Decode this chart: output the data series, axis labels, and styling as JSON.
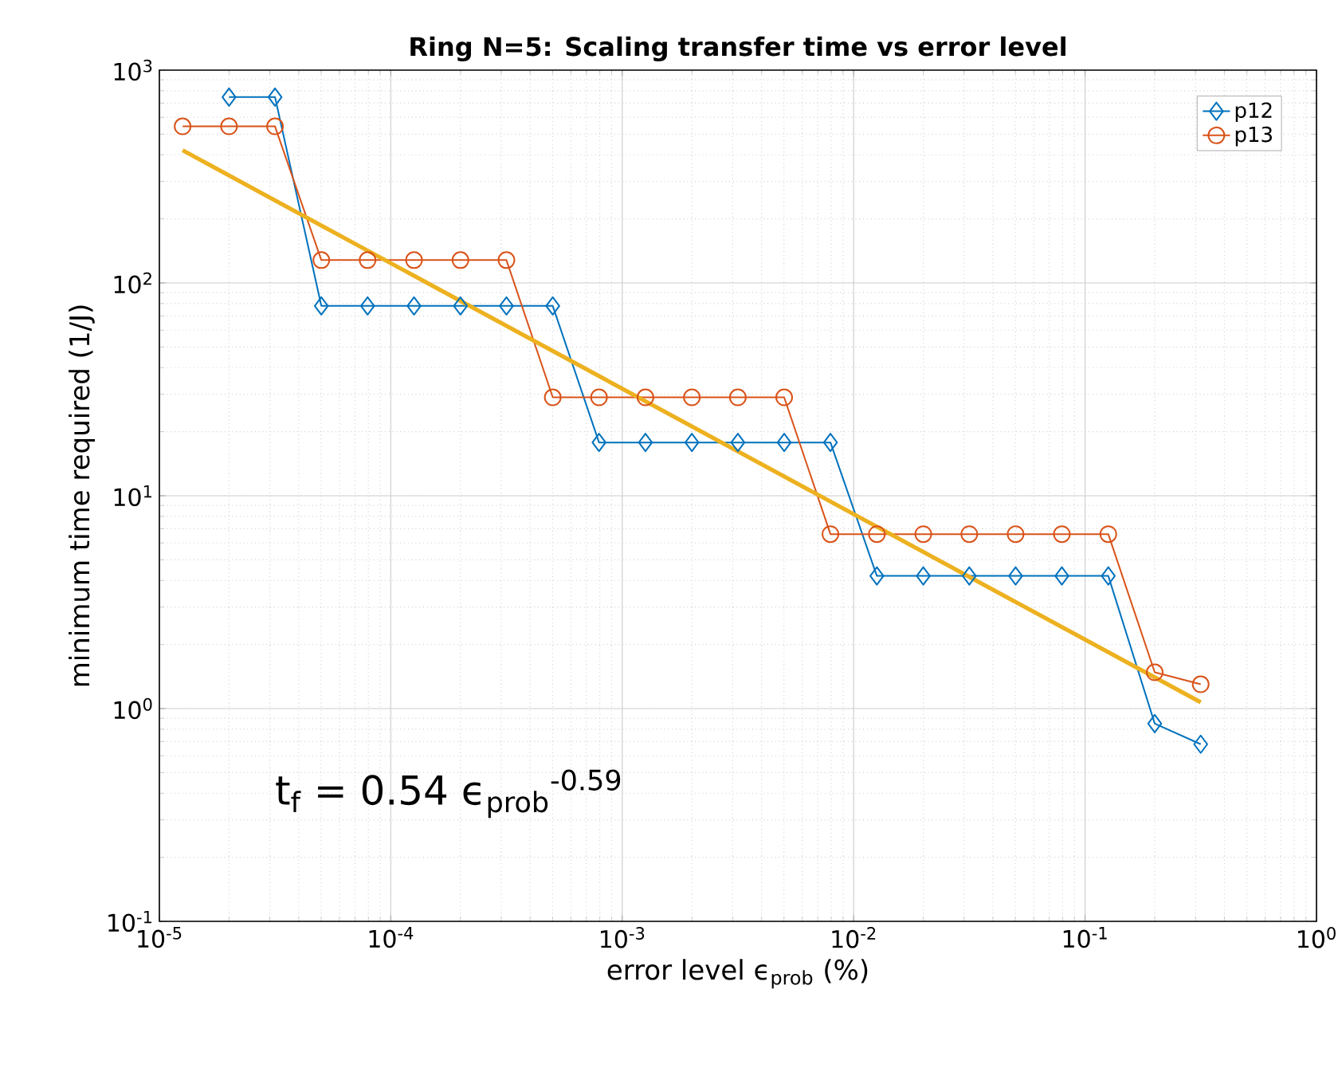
{
  "chart_data": {
    "type": "line",
    "title": "Ring N=5: Scaling transfer time vs error level",
    "xlabel": "error level ϵ$_{prob}$ (%)",
    "ylabel": "minimum time required (1/J)",
    "log": "xy",
    "grid": true,
    "legend": "top right",
    "xlim": [
      1e-05,
      1
    ],
    "ylim": [
      0.1,
      1000
    ],
    "xticks": [
      {
        "value": 1e-05,
        "label": "10$^{-5}$"
      },
      {
        "value": 0.0001,
        "label": "10$^{-4}$"
      },
      {
        "value": 0.001,
        "label": "10$^{-3}$"
      },
      {
        "value": 0.01,
        "label": "10$^{-2}$"
      },
      {
        "value": 0.1,
        "label": "10$^{-1}$"
      },
      {
        "value": 1,
        "label": "10$^{0}$"
      }
    ],
    "yticks": [
      {
        "value": 0.1,
        "label": "10$^{-1}$"
      },
      {
        "value": 1,
        "label": "10$^{0}$"
      },
      {
        "value": 10,
        "label": "10$^{1}$"
      },
      {
        "value": 100,
        "label": "10$^{2}$"
      },
      {
        "value": 1000,
        "label": "10$^{3}$"
      }
    ],
    "series": [
      {
        "name": "p12",
        "color": "#0072bd",
        "marker": "diamond",
        "x": [
          2e-05,
          3.16e-05,
          5.01e-05,
          7.94e-05,
          0.000126,
          0.0002,
          0.000316,
          0.000501,
          0.000794,
          0.00126,
          0.002,
          0.00316,
          0.00501,
          0.00794,
          0.0126,
          0.02,
          0.0316,
          0.0501,
          0.0794,
          0.126,
          0.2,
          0.316
        ],
        "values": [
          747,
          747,
          78,
          78,
          78,
          78,
          78,
          78,
          17.8,
          17.8,
          17.8,
          17.8,
          17.8,
          17.8,
          4.2,
          4.2,
          4.2,
          4.2,
          4.2,
          4.2,
          0.85,
          0.68
        ]
      },
      {
        "name": "p13",
        "color": "#d95319",
        "marker": "circle",
        "x": [
          1.26e-05,
          2e-05,
          3.16e-05,
          5.01e-05,
          7.94e-05,
          0.000126,
          0.0002,
          0.000316,
          0.000501,
          0.000794,
          0.00126,
          0.002,
          0.00316,
          0.00501,
          0.00794,
          0.0126,
          0.02,
          0.0316,
          0.0501,
          0.0794,
          0.126,
          0.2,
          0.316
        ],
        "values": [
          544,
          544,
          544,
          128,
          128,
          128,
          128,
          128,
          29,
          29,
          29,
          29,
          29,
          29,
          6.6,
          6.6,
          6.6,
          6.6,
          6.6,
          6.6,
          6.6,
          1.48,
          1.3
        ]
      },
      {
        "type": "line",
        "color": "#edb120",
        "marker": "none",
        "x": [
          1.26e-05,
          0.316
        ],
        "values": [
          420,
          1.07
        ]
      }
    ],
    "annotations": [
      "t$_{f}$ = 0.54 ϵ$_{prob}$$^{-0.59}$"
    ]
  }
}
